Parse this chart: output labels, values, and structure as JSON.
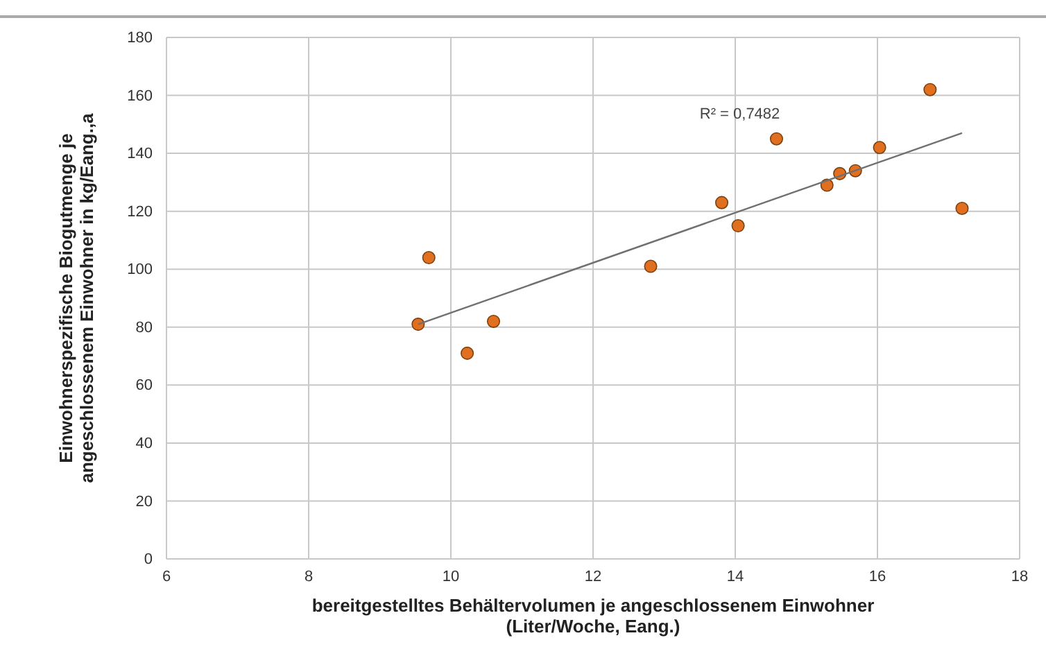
{
  "chart_data": {
    "type": "scatter",
    "xlabel": "bereitgestelltes Behältervolumen je angeschlossenem Einwohner\n(Liter/Woche, Eang.)",
    "ylabel": "Einwohnerspezifische Biogutmenge je\nangeschlossenem Einwohner in kg/Eang.,a",
    "xlim": [
      6,
      18
    ],
    "ylim": [
      0,
      180
    ],
    "xticks": [
      6,
      8,
      10,
      12,
      14,
      16,
      18
    ],
    "yticks": [
      0,
      20,
      40,
      60,
      80,
      100,
      120,
      140,
      160,
      180
    ],
    "grid": true,
    "annotations": [
      "R² = 0,7482"
    ],
    "series": [
      {
        "marker": "circle",
        "color": "#e07020",
        "x": [
          9.54,
          9.69,
          10.23,
          10.6,
          12.81,
          13.81,
          14.04,
          14.58,
          15.29,
          15.47,
          15.69,
          16.03,
          16.74,
          17.19
        ],
        "values": [
          81,
          104,
          71,
          82,
          101,
          123,
          115,
          145,
          129,
          133,
          134,
          142,
          162,
          121
        ]
      },
      {
        "type": "line",
        "marker": "none",
        "color": "#707070",
        "x": [
          9.54,
          17.19
        ],
        "values": [
          81,
          147
        ]
      }
    ]
  }
}
